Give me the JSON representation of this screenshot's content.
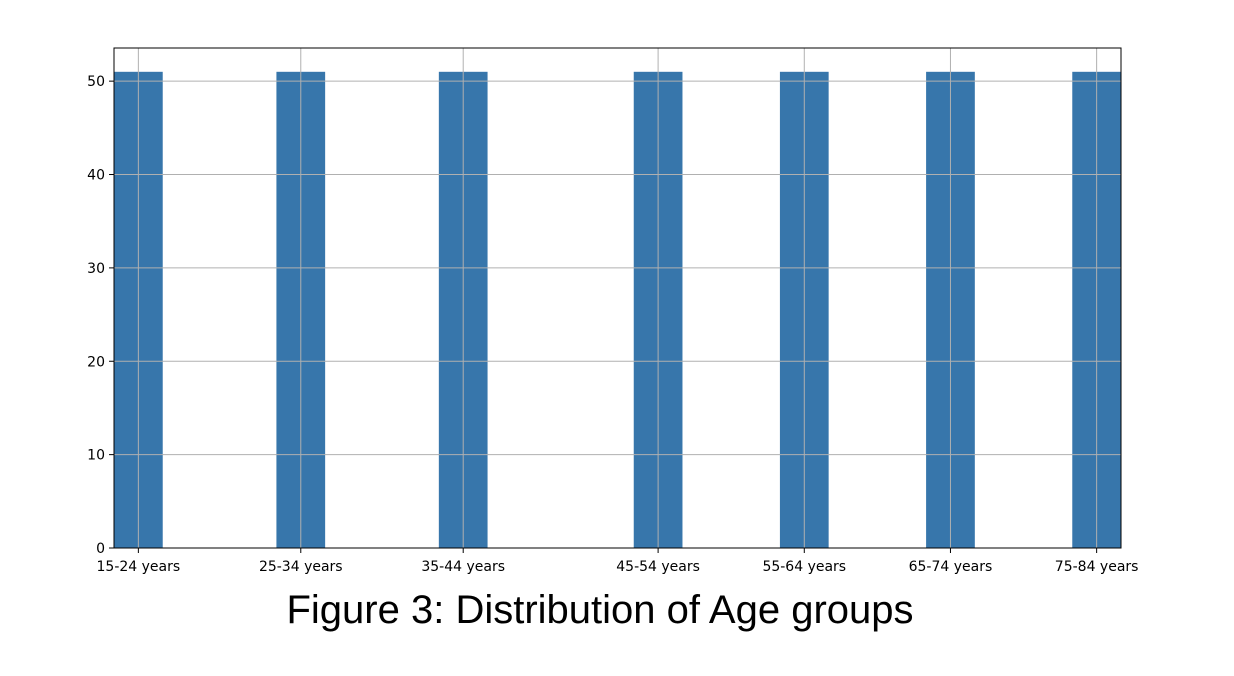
{
  "figure": {
    "caption": "Figure 3: Distribution of Age groups"
  },
  "chart_data": {
    "type": "bar",
    "categories": [
      "15-24 years",
      "25-34 years",
      "35-44 years",
      "45-54 years",
      "55-64 years",
      "65-74 years",
      "75-84 years"
    ],
    "x_positions": [
      0,
      1,
      2,
      3.2,
      4.1,
      5,
      5.9
    ],
    "values": [
      51,
      51,
      51,
      51,
      51,
      51,
      51
    ],
    "ylim": [
      0,
      53.55
    ],
    "yticks": [
      0,
      10,
      20,
      30,
      40,
      50
    ],
    "ytick_labels": [
      "0",
      "10",
      "20",
      "30",
      "40",
      "50"
    ],
    "grid": true,
    "bar_color": "#3776ab",
    "title": "",
    "xlabel": "",
    "ylabel": ""
  }
}
